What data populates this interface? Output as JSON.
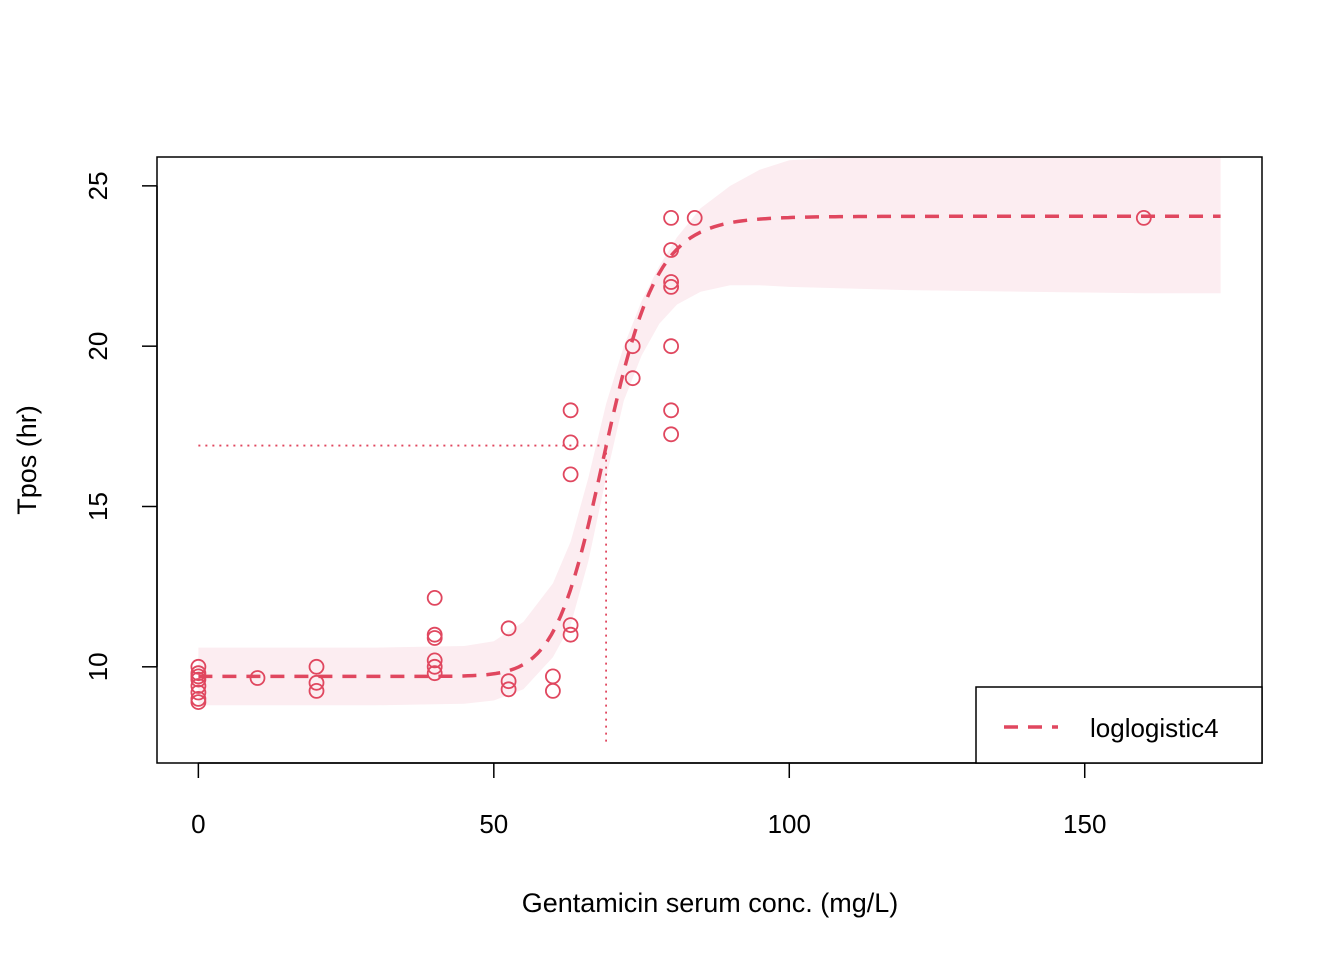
{
  "chart_data": {
    "type": "scatter",
    "xlabel": "Gentamicin serum conc. (mg/L)",
    "ylabel": "Tpos (hr)",
    "xlim": [
      -7,
      180
    ],
    "ylim": [
      7,
      25.9
    ],
    "x_ticks": [
      "0",
      "50",
      "100",
      "150"
    ],
    "x_tick_values": [
      0,
      50,
      100,
      150
    ],
    "y_ticks": [
      "10",
      "15",
      "20",
      "25"
    ],
    "y_tick_values": [
      10,
      15,
      20,
      25
    ],
    "color": "#e0475f",
    "band_color": "#fcedf1",
    "legend": {
      "label": "loglogistic4",
      "position": "bottom-right",
      "line_style": "dashed"
    },
    "fit": {
      "model": "loglogistic4",
      "lower": 9.7,
      "upper": 24.05,
      "ec50": 69,
      "hill": 16,
      "x_range": [
        0,
        173
      ]
    },
    "confidence_band": {
      "x": [
        0,
        30,
        45,
        50,
        55,
        60,
        63,
        66,
        69,
        72,
        75,
        78,
        81,
        85,
        90,
        95,
        100,
        110,
        120,
        140,
        160,
        173
      ],
      "lower": [
        8.8,
        8.8,
        8.85,
        8.95,
        9.3,
        10.3,
        11.3,
        13.3,
        15.9,
        18.3,
        19.7,
        20.7,
        21.3,
        21.7,
        21.9,
        21.9,
        21.85,
        21.8,
        21.75,
        21.7,
        21.65,
        21.65
      ],
      "upper": [
        10.6,
        10.6,
        10.65,
        10.8,
        11.4,
        12.6,
        13.9,
        15.9,
        18.2,
        20.0,
        21.4,
        22.5,
        23.4,
        24.3,
        25.0,
        25.5,
        25.8,
        25.9,
        25.9,
        25.9,
        25.9,
        25.9
      ]
    },
    "ec50_guide": {
      "x": 69,
      "y": 16.9
    },
    "points": [
      {
        "x": 0,
        "y": 10.0
      },
      {
        "x": 0,
        "y": 9.8
      },
      {
        "x": 0,
        "y": 9.6
      },
      {
        "x": 0,
        "y": 9.4
      },
      {
        "x": 0,
        "y": 9.2
      },
      {
        "x": 0,
        "y": 9.0
      },
      {
        "x": 0,
        "y": 8.9
      },
      {
        "x": 0,
        "y": 9.7
      },
      {
        "x": 10,
        "y": 9.65
      },
      {
        "x": 20,
        "y": 10.0
      },
      {
        "x": 20,
        "y": 9.5
      },
      {
        "x": 20,
        "y": 9.25
      },
      {
        "x": 40,
        "y": 12.15
      },
      {
        "x": 40,
        "y": 11.0
      },
      {
        "x": 40,
        "y": 10.9
      },
      {
        "x": 40,
        "y": 10.2
      },
      {
        "x": 40,
        "y": 10.0
      },
      {
        "x": 40,
        "y": 9.8
      },
      {
        "x": 52.5,
        "y": 11.2
      },
      {
        "x": 52.5,
        "y": 9.55
      },
      {
        "x": 52.5,
        "y": 9.3
      },
      {
        "x": 60,
        "y": 9.7
      },
      {
        "x": 60,
        "y": 9.25
      },
      {
        "x": 63,
        "y": 18.0
      },
      {
        "x": 63,
        "y": 17.0
      },
      {
        "x": 63,
        "y": 16.0
      },
      {
        "x": 63,
        "y": 11.3
      },
      {
        "x": 63,
        "y": 11.0
      },
      {
        "x": 73.5,
        "y": 20.0
      },
      {
        "x": 73.5,
        "y": 19.0
      },
      {
        "x": 80,
        "y": 24.0
      },
      {
        "x": 80,
        "y": 23.0
      },
      {
        "x": 80,
        "y": 22.0
      },
      {
        "x": 80,
        "y": 21.85
      },
      {
        "x": 80,
        "y": 20.0
      },
      {
        "x": 80,
        "y": 18.0
      },
      {
        "x": 80,
        "y": 17.25
      },
      {
        "x": 84,
        "y": 24.0
      },
      {
        "x": 160,
        "y": 24.0
      }
    ]
  }
}
